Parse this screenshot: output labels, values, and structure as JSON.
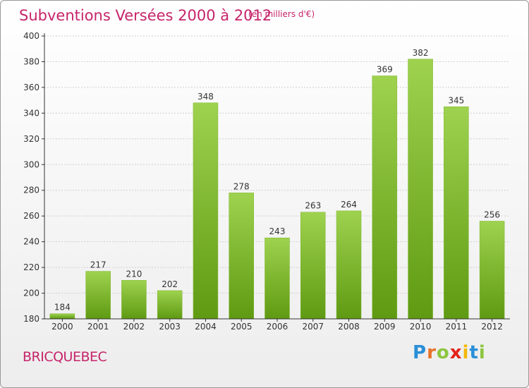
{
  "header": {
    "title": "Subventions Versées 2000 à 2012",
    "unit_note": "(en milliers d'€)"
  },
  "footer": {
    "commune": "BRICQUEBEC",
    "logo_letters": [
      "P",
      "r",
      "o",
      "x",
      "i",
      "t",
      "i"
    ],
    "logo_colors": [
      "#2a8fd8",
      "#e8732a",
      "#8cc63f",
      "#e2231a",
      "#f2b705",
      "#2a8fd8",
      "#8cc63f"
    ]
  },
  "colors": {
    "accent": "#c6246a",
    "bar_light": "#9ed24f",
    "bar_dark": "#5f9a12",
    "axis": "#333333",
    "grid": "#cfcfcf"
  },
  "chart_data": {
    "type": "bar",
    "categories": [
      "2000",
      "2001",
      "2002",
      "2003",
      "2004",
      "2005",
      "2006",
      "2007",
      "2008",
      "2009",
      "2010",
      "2011",
      "2012"
    ],
    "values": [
      184,
      217,
      210,
      202,
      348,
      278,
      243,
      263,
      264,
      369,
      382,
      345,
      256
    ],
    "ylim": [
      180,
      400
    ],
    "yticks": [
      180,
      200,
      220,
      240,
      260,
      280,
      300,
      320,
      340,
      360,
      380,
      400
    ],
    "grid": true,
    "legend": "none"
  }
}
